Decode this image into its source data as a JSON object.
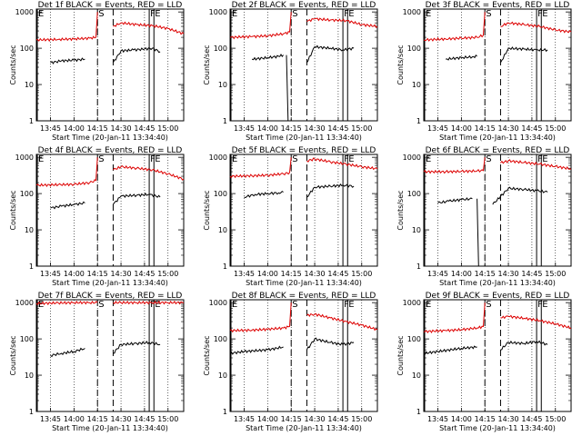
{
  "figure": {
    "ylabel": "Counts/sec",
    "xlabel": "Start Time (20-Jan-11 13:34:40)",
    "yticks": [
      "1",
      "10",
      "100",
      "1000"
    ],
    "xticks": [
      "13:45",
      "14:00",
      "14:15",
      "14:30",
      "14:45",
      "15:00"
    ],
    "markers": {
      "E": "E",
      "S": "S",
      "F": "F"
    },
    "colors": {
      "events": "#000000",
      "lld": "#dd0000",
      "axes": "#000000"
    }
  },
  "chart_data": [
    {
      "type": "line",
      "title": "Det 1f BLACK = Events, RED = LLD",
      "ylim": [
        1,
        1200
      ],
      "xlim": [
        "13:36",
        "15:10"
      ],
      "yscale": "log",
      "markers": {
        "E": "13:36",
        "S": "14:15",
        "F": [
          "14:48",
          "14:51"
        ]
      },
      "series": [
        {
          "name": "BLACK = Events",
          "segments": [
            {
              "x": [
                "13:45",
                "13:52",
                "14:00",
                "14:07"
              ],
              "y": [
                40,
                45,
                47,
                50
              ]
            },
            {
              "x": [
                "14:25",
                "14:30",
                "14:38",
                "14:45",
                "14:50",
                "14:55"
              ],
              "y": [
                40,
                85,
                90,
                95,
                100,
                80
              ]
            }
          ]
        },
        {
          "name": "RED = LLD",
          "segments": [
            {
              "x": [
                "13:36",
                "13:50",
                "14:00",
                "14:10",
                "14:14",
                "14:15"
              ],
              "y": [
                170,
                175,
                180,
                190,
                200,
                1000
              ]
            },
            {
              "x": [
                "14:25",
                "14:30",
                "14:40",
                "14:50",
                "15:00",
                "15:10"
              ],
              "y": [
                400,
                500,
                450,
                420,
                350,
                250
              ]
            }
          ]
        }
      ]
    },
    {
      "type": "line",
      "title": "Det 2f BLACK = Events, RED = LLD",
      "ylim": [
        1,
        1200
      ],
      "xlim": [
        "13:36",
        "15:10"
      ],
      "yscale": "log",
      "markers": {
        "E": "13:36",
        "S": "14:15",
        "F": [
          "14:48",
          "14:51"
        ]
      },
      "series": [
        {
          "name": "BLACK = Events",
          "segments": [
            {
              "x": [
                "13:50",
                "14:00",
                "14:07",
                "14:10"
              ],
              "y": [
                50,
                55,
                60,
                65
              ]
            },
            {
              "x": [
                "14:12",
                "14:13"
              ],
              "y": [
                65,
                1
              ]
            },
            {
              "x": [
                "14:25",
                "14:30",
                "14:40",
                "14:48",
                "14:55"
              ],
              "y": [
                40,
                110,
                100,
                90,
                100
              ]
            }
          ]
        },
        {
          "name": "RED = LLD",
          "segments": [
            {
              "x": [
                "13:36",
                "13:50",
                "14:00",
                "14:10",
                "14:14",
                "14:15"
              ],
              "y": [
                200,
                210,
                220,
                250,
                280,
                1000
              ]
            },
            {
              "x": [
                "14:25",
                "14:30",
                "14:40",
                "14:50",
                "15:00",
                "15:10"
              ],
              "y": [
                550,
                650,
                600,
                580,
                450,
                400
              ]
            }
          ]
        }
      ]
    },
    {
      "type": "line",
      "title": "Det 3f BLACK = Events, RED = LLD",
      "ylim": [
        1,
        1200
      ],
      "xlim": [
        "13:36",
        "15:10"
      ],
      "yscale": "log",
      "markers": {
        "E": "13:36",
        "S": "14:15",
        "F": [
          "14:48",
          "14:51"
        ]
      },
      "series": [
        {
          "name": "BLACK = Events",
          "segments": [
            {
              "x": [
                "13:50",
                "14:00",
                "14:07",
                "14:10"
              ],
              "y": [
                50,
                55,
                58,
                60
              ]
            },
            {
              "x": [
                "14:25",
                "14:30",
                "14:40",
                "14:48",
                "14:55"
              ],
              "y": [
                40,
                100,
                95,
                90,
                90
              ]
            }
          ]
        },
        {
          "name": "RED = LLD",
          "segments": [
            {
              "x": [
                "13:36",
                "13:50",
                "14:00",
                "14:10",
                "14:14",
                "14:15"
              ],
              "y": [
                170,
                180,
                190,
                200,
                230,
                1000
              ]
            },
            {
              "x": [
                "14:25",
                "14:30",
                "14:40",
                "14:50",
                "15:00",
                "15:10"
              ],
              "y": [
                400,
                500,
                450,
                400,
                320,
                280
              ]
            }
          ]
        }
      ]
    },
    {
      "type": "line",
      "title": "Det 4f BLACK = Events, RED = LLD",
      "ylim": [
        1,
        1200
      ],
      "xlim": [
        "13:36",
        "15:10"
      ],
      "yscale": "log",
      "markers": {
        "E": "13:36",
        "S": "14:15",
        "F": [
          "14:48",
          "14:51"
        ]
      },
      "series": [
        {
          "name": "BLACK = Events",
          "segments": [
            {
              "x": [
                "13:45",
                "13:52",
                "14:00",
                "14:07"
              ],
              "y": [
                40,
                45,
                50,
                55
              ]
            },
            {
              "x": [
                "14:25",
                "14:30",
                "14:40",
                "14:48",
                "14:55"
              ],
              "y": [
                50,
                85,
                90,
                95,
                80
              ]
            }
          ]
        },
        {
          "name": "RED = LLD",
          "segments": [
            {
              "x": [
                "13:36",
                "13:50",
                "14:00",
                "14:10",
                "14:14",
                "14:15"
              ],
              "y": [
                170,
                175,
                180,
                200,
                230,
                1000
              ]
            },
            {
              "x": [
                "14:25",
                "14:30",
                "14:40",
                "14:50",
                "15:00",
                "15:10"
              ],
              "y": [
                450,
                550,
                500,
                450,
                350,
                250
              ]
            }
          ]
        }
      ]
    },
    {
      "type": "line",
      "title": "Det 5f BLACK = Events, RED = LLD",
      "ylim": [
        1,
        1200
      ],
      "xlim": [
        "13:36",
        "15:10"
      ],
      "yscale": "log",
      "markers": {
        "E": "13:36",
        "S": "14:15",
        "F": [
          "14:48",
          "14:51"
        ]
      },
      "series": [
        {
          "name": "BLACK = Events",
          "segments": [
            {
              "x": [
                "13:45",
                "13:52",
                "14:00",
                "14:07",
                "14:10"
              ],
              "y": [
                80,
                95,
                100,
                105,
                110
              ]
            },
            {
              "x": [
                "14:25",
                "14:30",
                "14:40",
                "14:48",
                "14:55"
              ],
              "y": [
                80,
                150,
                160,
                170,
                160
              ]
            }
          ]
        },
        {
          "name": "RED = LLD",
          "segments": [
            {
              "x": [
                "13:36",
                "13:50",
                "14:00",
                "14:10",
                "14:14",
                "14:15"
              ],
              "y": [
                300,
                310,
                320,
                350,
                380,
                1000
              ]
            },
            {
              "x": [
                "14:25",
                "14:30",
                "14:40",
                "14:50",
                "15:00",
                "15:10"
              ],
              "y": [
                800,
                900,
                750,
                650,
                550,
                480
              ]
            }
          ]
        }
      ]
    },
    {
      "type": "line",
      "title": "Det 6f BLACK = Events, RED = LLD",
      "ylim": [
        1,
        1200
      ],
      "xlim": [
        "13:36",
        "15:10"
      ],
      "yscale": "log",
      "markers": {
        "E": "13:36",
        "S": "14:15",
        "F": [
          "14:48",
          "14:51"
        ]
      },
      "series": [
        {
          "name": "BLACK = Events",
          "segments": [
            {
              "x": [
                "13:45",
                "13:52",
                "14:00",
                "14:07"
              ],
              "y": [
                55,
                62,
                68,
                72
              ]
            },
            {
              "x": [
                "14:10",
                "14:11"
              ],
              "y": [
                72,
                1
              ]
            },
            {
              "x": [
                "14:20",
                "14:30",
                "14:40",
                "14:48",
                "14:55"
              ],
              "y": [
                50,
                140,
                130,
                120,
                110
              ]
            }
          ]
        },
        {
          "name": "RED = LLD",
          "segments": [
            {
              "x": [
                "13:36",
                "13:50",
                "14:00",
                "14:10",
                "14:14",
                "14:15"
              ],
              "y": [
                400,
                400,
                410,
                420,
                430,
                1000
              ]
            },
            {
              "x": [
                "14:25",
                "14:30",
                "14:40",
                "14:50",
                "15:00",
                "15:10"
              ],
              "y": [
                700,
                800,
                720,
                650,
                560,
                480
              ]
            }
          ]
        }
      ]
    },
    {
      "type": "line",
      "title": "Det 7f BLACK = Events, RED = LLD",
      "ylim": [
        1,
        1200
      ],
      "xlim": [
        "13:36",
        "15:10"
      ],
      "yscale": "log",
      "markers": {
        "E": "13:36",
        "S": "14:15",
        "F": [
          "14:48",
          "14:51"
        ]
      },
      "series": [
        {
          "name": "BLACK = Events",
          "segments": [
            {
              "x": [
                "13:45",
                "13:52",
                "14:00",
                "14:07"
              ],
              "y": [
                35,
                40,
                45,
                55
              ]
            },
            {
              "x": [
                "14:25",
                "14:30",
                "14:40",
                "14:48",
                "14:55"
              ],
              "y": [
                40,
                70,
                75,
                80,
                70
              ]
            }
          ]
        },
        {
          "name": "RED = LLD",
          "segments": [
            {
              "x": [
                "13:36",
                "13:50",
                "14:00",
                "14:10",
                "14:15"
              ],
              "y": [
                950,
                980,
                1000,
                1000,
                1000
              ]
            },
            {
              "x": [
                "14:25",
                "14:30",
                "14:40",
                "14:50",
                "15:00",
                "15:10"
              ],
              "y": [
                1000,
                1000,
                1000,
                1000,
                1000,
                1000
              ]
            }
          ]
        }
      ]
    },
    {
      "type": "line",
      "title": "Det 8f BLACK = Events, RED = LLD",
      "ylim": [
        1,
        1200
      ],
      "xlim": [
        "13:36",
        "15:10"
      ],
      "yscale": "log",
      "markers": {
        "E": "13:36",
        "S": "14:15",
        "F": [
          "14:48",
          "14:51"
        ]
      },
      "series": [
        {
          "name": "BLACK = Events",
          "segments": [
            {
              "x": [
                "13:36",
                "13:45",
                "14:00",
                "14:10"
              ],
              "y": [
                40,
                45,
                50,
                60
              ]
            },
            {
              "x": [
                "14:25",
                "14:30",
                "14:40",
                "14:48",
                "14:55"
              ],
              "y": [
                50,
                100,
                80,
                70,
                80
              ]
            }
          ]
        },
        {
          "name": "RED = LLD",
          "segments": [
            {
              "x": [
                "13:36",
                "13:50",
                "14:00",
                "14:10",
                "14:14",
                "14:15"
              ],
              "y": [
                170,
                175,
                185,
                200,
                220,
                1000
              ]
            },
            {
              "x": [
                "14:25",
                "14:30",
                "14:40",
                "14:50",
                "15:00",
                "15:10"
              ],
              "y": [
                450,
                480,
                380,
                300,
                240,
                180
              ]
            }
          ]
        }
      ]
    },
    {
      "type": "line",
      "title": "Det 9f BLACK = Events, RED = LLD",
      "ylim": [
        1,
        1200
      ],
      "xlim": [
        "13:36",
        "15:10"
      ],
      "yscale": "log",
      "markers": {
        "E": "13:36",
        "S": "14:15",
        "F": [
          "14:48",
          "14:51"
        ]
      },
      "series": [
        {
          "name": "BLACK = Events",
          "segments": [
            {
              "x": [
                "13:36",
                "13:45",
                "14:00",
                "14:10"
              ],
              "y": [
                40,
                45,
                55,
                60
              ]
            },
            {
              "x": [
                "14:25",
                "14:30",
                "14:40",
                "14:48",
                "14:55"
              ],
              "y": [
                50,
                80,
                75,
                85,
                70
              ]
            }
          ]
        },
        {
          "name": "RED = LLD",
          "segments": [
            {
              "x": [
                "13:36",
                "13:50",
                "14:00",
                "14:10",
                "14:14",
                "14:15"
              ],
              "y": [
                160,
                170,
                180,
                200,
                220,
                1000
              ]
            },
            {
              "x": [
                "14:25",
                "14:30",
                "14:40",
                "14:50",
                "15:00",
                "15:10"
              ],
              "y": [
                380,
                420,
                370,
                320,
                260,
                200
              ]
            }
          ]
        }
      ]
    }
  ]
}
